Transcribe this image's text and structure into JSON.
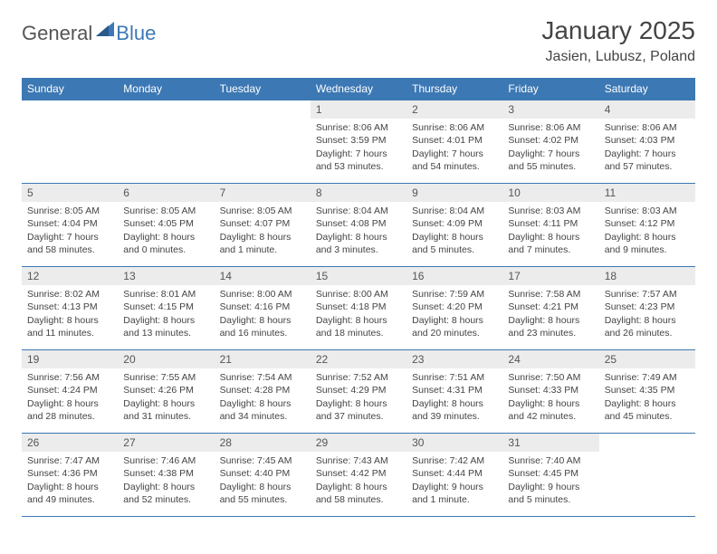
{
  "brand": {
    "part1": "General",
    "part2": "Blue"
  },
  "title": "January 2025",
  "location": "Jasien, Lubusz, Poland",
  "colors": {
    "header_bg": "#3c78b4",
    "header_text": "#ffffff",
    "daynum_bg": "#ececec",
    "border": "#3c78b4",
    "text": "#444444"
  },
  "day_headers": [
    "Sunday",
    "Monday",
    "Tuesday",
    "Wednesday",
    "Thursday",
    "Friday",
    "Saturday"
  ],
  "weeks": [
    [
      {
        "n": "",
        "sr": "",
        "ss": "",
        "dl": ""
      },
      {
        "n": "",
        "sr": "",
        "ss": "",
        "dl": ""
      },
      {
        "n": "",
        "sr": "",
        "ss": "",
        "dl": ""
      },
      {
        "n": "1",
        "sr": "Sunrise: 8:06 AM",
        "ss": "Sunset: 3:59 PM",
        "dl": "Daylight: 7 hours and 53 minutes."
      },
      {
        "n": "2",
        "sr": "Sunrise: 8:06 AM",
        "ss": "Sunset: 4:01 PM",
        "dl": "Daylight: 7 hours and 54 minutes."
      },
      {
        "n": "3",
        "sr": "Sunrise: 8:06 AM",
        "ss": "Sunset: 4:02 PM",
        "dl": "Daylight: 7 hours and 55 minutes."
      },
      {
        "n": "4",
        "sr": "Sunrise: 8:06 AM",
        "ss": "Sunset: 4:03 PM",
        "dl": "Daylight: 7 hours and 57 minutes."
      }
    ],
    [
      {
        "n": "5",
        "sr": "Sunrise: 8:05 AM",
        "ss": "Sunset: 4:04 PM",
        "dl": "Daylight: 7 hours and 58 minutes."
      },
      {
        "n": "6",
        "sr": "Sunrise: 8:05 AM",
        "ss": "Sunset: 4:05 PM",
        "dl": "Daylight: 8 hours and 0 minutes."
      },
      {
        "n": "7",
        "sr": "Sunrise: 8:05 AM",
        "ss": "Sunset: 4:07 PM",
        "dl": "Daylight: 8 hours and 1 minute."
      },
      {
        "n": "8",
        "sr": "Sunrise: 8:04 AM",
        "ss": "Sunset: 4:08 PM",
        "dl": "Daylight: 8 hours and 3 minutes."
      },
      {
        "n": "9",
        "sr": "Sunrise: 8:04 AM",
        "ss": "Sunset: 4:09 PM",
        "dl": "Daylight: 8 hours and 5 minutes."
      },
      {
        "n": "10",
        "sr": "Sunrise: 8:03 AM",
        "ss": "Sunset: 4:11 PM",
        "dl": "Daylight: 8 hours and 7 minutes."
      },
      {
        "n": "11",
        "sr": "Sunrise: 8:03 AM",
        "ss": "Sunset: 4:12 PM",
        "dl": "Daylight: 8 hours and 9 minutes."
      }
    ],
    [
      {
        "n": "12",
        "sr": "Sunrise: 8:02 AM",
        "ss": "Sunset: 4:13 PM",
        "dl": "Daylight: 8 hours and 11 minutes."
      },
      {
        "n": "13",
        "sr": "Sunrise: 8:01 AM",
        "ss": "Sunset: 4:15 PM",
        "dl": "Daylight: 8 hours and 13 minutes."
      },
      {
        "n": "14",
        "sr": "Sunrise: 8:00 AM",
        "ss": "Sunset: 4:16 PM",
        "dl": "Daylight: 8 hours and 16 minutes."
      },
      {
        "n": "15",
        "sr": "Sunrise: 8:00 AM",
        "ss": "Sunset: 4:18 PM",
        "dl": "Daylight: 8 hours and 18 minutes."
      },
      {
        "n": "16",
        "sr": "Sunrise: 7:59 AM",
        "ss": "Sunset: 4:20 PM",
        "dl": "Daylight: 8 hours and 20 minutes."
      },
      {
        "n": "17",
        "sr": "Sunrise: 7:58 AM",
        "ss": "Sunset: 4:21 PM",
        "dl": "Daylight: 8 hours and 23 minutes."
      },
      {
        "n": "18",
        "sr": "Sunrise: 7:57 AM",
        "ss": "Sunset: 4:23 PM",
        "dl": "Daylight: 8 hours and 26 minutes."
      }
    ],
    [
      {
        "n": "19",
        "sr": "Sunrise: 7:56 AM",
        "ss": "Sunset: 4:24 PM",
        "dl": "Daylight: 8 hours and 28 minutes."
      },
      {
        "n": "20",
        "sr": "Sunrise: 7:55 AM",
        "ss": "Sunset: 4:26 PM",
        "dl": "Daylight: 8 hours and 31 minutes."
      },
      {
        "n": "21",
        "sr": "Sunrise: 7:54 AM",
        "ss": "Sunset: 4:28 PM",
        "dl": "Daylight: 8 hours and 34 minutes."
      },
      {
        "n": "22",
        "sr": "Sunrise: 7:52 AM",
        "ss": "Sunset: 4:29 PM",
        "dl": "Daylight: 8 hours and 37 minutes."
      },
      {
        "n": "23",
        "sr": "Sunrise: 7:51 AM",
        "ss": "Sunset: 4:31 PM",
        "dl": "Daylight: 8 hours and 39 minutes."
      },
      {
        "n": "24",
        "sr": "Sunrise: 7:50 AM",
        "ss": "Sunset: 4:33 PM",
        "dl": "Daylight: 8 hours and 42 minutes."
      },
      {
        "n": "25",
        "sr": "Sunrise: 7:49 AM",
        "ss": "Sunset: 4:35 PM",
        "dl": "Daylight: 8 hours and 45 minutes."
      }
    ],
    [
      {
        "n": "26",
        "sr": "Sunrise: 7:47 AM",
        "ss": "Sunset: 4:36 PM",
        "dl": "Daylight: 8 hours and 49 minutes."
      },
      {
        "n": "27",
        "sr": "Sunrise: 7:46 AM",
        "ss": "Sunset: 4:38 PM",
        "dl": "Daylight: 8 hours and 52 minutes."
      },
      {
        "n": "28",
        "sr": "Sunrise: 7:45 AM",
        "ss": "Sunset: 4:40 PM",
        "dl": "Daylight: 8 hours and 55 minutes."
      },
      {
        "n": "29",
        "sr": "Sunrise: 7:43 AM",
        "ss": "Sunset: 4:42 PM",
        "dl": "Daylight: 8 hours and 58 minutes."
      },
      {
        "n": "30",
        "sr": "Sunrise: 7:42 AM",
        "ss": "Sunset: 4:44 PM",
        "dl": "Daylight: 9 hours and 1 minute."
      },
      {
        "n": "31",
        "sr": "Sunrise: 7:40 AM",
        "ss": "Sunset: 4:45 PM",
        "dl": "Daylight: 9 hours and 5 minutes."
      },
      {
        "n": "",
        "sr": "",
        "ss": "",
        "dl": ""
      }
    ]
  ]
}
